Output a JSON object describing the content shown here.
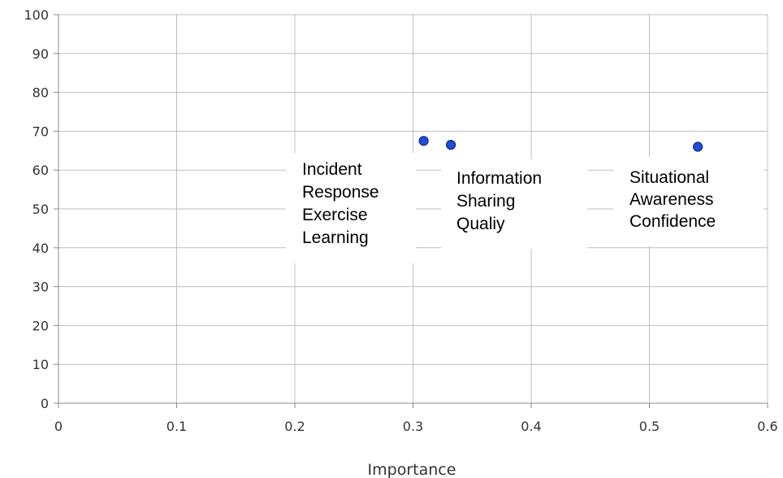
{
  "chart_data": {
    "type": "scatter",
    "title": "",
    "xlabel": "Importance",
    "ylabel": "",
    "xlim": [
      0,
      0.6
    ],
    "ylim": [
      0,
      100
    ],
    "xticks": [
      "0",
      "0.1",
      "0.2",
      "0.3",
      "0.4",
      "0.5",
      "0.6"
    ],
    "yticks": [
      "0",
      "10",
      "20",
      "30",
      "40",
      "50",
      "60",
      "70",
      "80",
      "90",
      "100"
    ],
    "grid": true,
    "points": [
      {
        "x": 0.309,
        "y": 67.5
      },
      {
        "x": 0.332,
        "y": 66.5
      },
      {
        "x": 0.541,
        "y": 66.0
      }
    ],
    "annotations": [
      {
        "lines": [
          "Incident",
          "Response",
          "Exercise",
          "Learning"
        ]
      },
      {
        "lines": [
          "Information",
          "Sharing",
          "Qualiy"
        ]
      },
      {
        "lines": [
          "Situational",
          "Awareness",
          "Confidence"
        ]
      }
    ],
    "colors": {
      "point_fill": "#1f4fd8",
      "point_stroke": "#0b2a8a",
      "grid": "#bfbfbf",
      "axis": "#888888"
    }
  }
}
